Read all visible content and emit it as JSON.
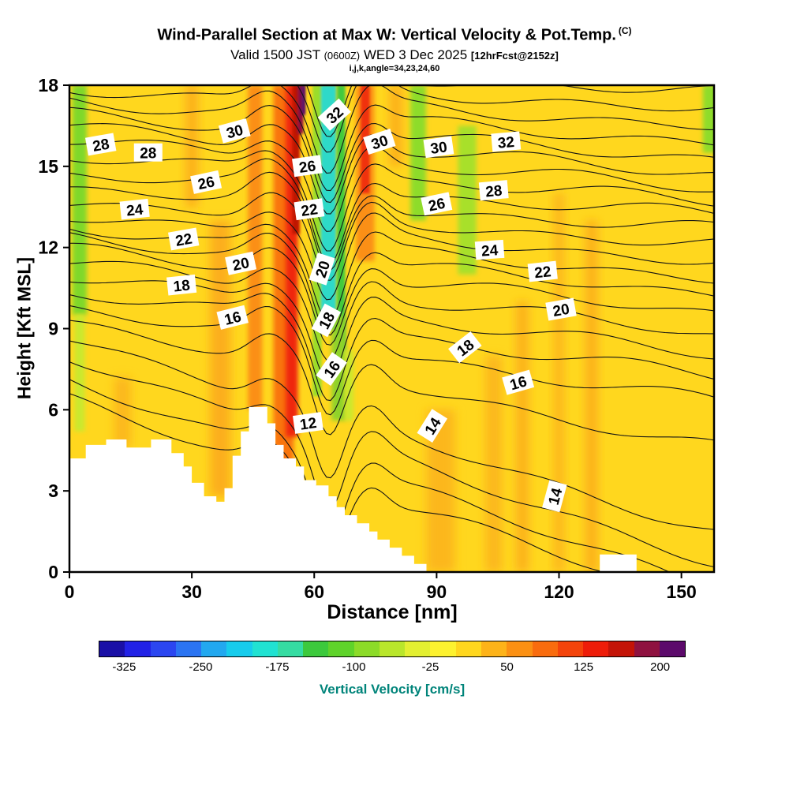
{
  "header": {
    "title_main": "Wind-Parallel Section at Max W: Vertical Velocity & Pot.Temp.",
    "title_unit": "(C)",
    "valid_prefix": "Valid 1500 JST",
    "valid_small": "(0600Z)",
    "valid_date": "WED 3 Dec 2025",
    "valid_fcst": "[12hrFcst@2152z]",
    "meta": "i,j,k,angle=34,23,24,60"
  },
  "colorbar": {
    "label": "Vertical Velocity [cm/s]",
    "min": -350,
    "max": 225,
    "tick_values": [
      -325,
      -250,
      -175,
      -100,
      -25,
      50,
      125,
      200
    ],
    "colors": [
      "#1a10a6",
      "#2222e6",
      "#2b46f0",
      "#2b74f2",
      "#22a8ef",
      "#17ccec",
      "#20e2d2",
      "#35dca2",
      "#3cc93c",
      "#5fd32a",
      "#8cdb28",
      "#b9e62b",
      "#e3ef31",
      "#fdf22f",
      "#ffd71e",
      "#fdb319",
      "#fb9013",
      "#f96c0e",
      "#f4440b",
      "#ee1d09",
      "#c41407",
      "#8f1240",
      "#5c0a6b"
    ]
  },
  "chart_data": {
    "type": "filled-contour-cross-section",
    "title": "Wind-Parallel Section at Max W: Vertical Velocity & Pot.Temp. (C)",
    "x": {
      "label": "Distance [nm]",
      "min": 0,
      "max": 158,
      "ticks": [
        0,
        30,
        60,
        90,
        120,
        150
      ]
    },
    "y": {
      "label": "Height [Kft MSL]",
      "min": 0,
      "max": 18,
      "ticks": [
        0,
        3,
        6,
        9,
        12,
        15,
        18
      ]
    },
    "theta_contours_c": {
      "interval": 1,
      "labeled_interval": 2,
      "levels": [
        {
          "v": 11,
          "h0": 6.3,
          "h1": -1.2
        },
        {
          "v": 12,
          "h0": 7.0,
          "h1": -0.5
        },
        {
          "v": 13,
          "h0": 7.9,
          "h1": 0.4
        },
        {
          "v": 14,
          "h0": 8.7,
          "h1": 1.5
        },
        {
          "v": 15,
          "h0": 9.3,
          "h1": 4.6
        },
        {
          "v": 16,
          "h0": 9.8,
          "h1": 6.3
        },
        {
          "v": 17,
          "h0": 10.35,
          "h1": 7.2
        },
        {
          "v": 18,
          "h0": 10.9,
          "h1": 8.0
        },
        {
          "v": 19,
          "h0": 11.4,
          "h1": 8.8
        },
        {
          "v": 20,
          "h0": 11.9,
          "h1": 9.6
        },
        {
          "v": 21,
          "h0": 12.3,
          "h1": 10.3
        },
        {
          "v": 22,
          "h0": 12.7,
          "h1": 10.9
        },
        {
          "v": 23,
          "h0": 13.2,
          "h1": 11.5
        },
        {
          "v": 24,
          "h0": 13.7,
          "h1": 12.1
        },
        {
          "v": 25,
          "h0": 14.2,
          "h1": 12.65
        },
        {
          "v": 26,
          "h0": 14.7,
          "h1": 13.2
        },
        {
          "v": 27,
          "h0": 15.3,
          "h1": 13.7
        },
        {
          "v": 28,
          "h0": 15.9,
          "h1": 14.2
        },
        {
          "v": 29,
          "h0": 16.4,
          "h1": 14.75
        },
        {
          "v": 30,
          "h0": 16.9,
          "h1": 15.3
        },
        {
          "v": 31,
          "h0": 17.4,
          "h1": 15.9
        },
        {
          "v": 32,
          "h0": 17.9,
          "h1": 16.5
        },
        {
          "v": 33,
          "h0": 18.4,
          "h1": 17.1
        },
        {
          "v": 34,
          "h0": 18.9,
          "h1": 17.7
        }
      ]
    },
    "wave": {
      "bump_center": 49,
      "bump_sigma": 6.5,
      "bump_amp": 0.8,
      "dip_center": 63.5,
      "dip_sigma": 5.0,
      "dip_amp": 2.6,
      "rebound_center": 74.5,
      "rebound_sigma": 5.0,
      "rebound_amp": 0.6,
      "ripple_amp": 0.18
    },
    "contour_labels": [
      {
        "v": 28,
        "d": 7.7,
        "h": 15.8,
        "r": -10
      },
      {
        "v": 28,
        "d": 19.3,
        "h": 15.5,
        "r": 0
      },
      {
        "v": 30,
        "d": 40.5,
        "h": 16.3,
        "r": -15
      },
      {
        "v": 26,
        "d": 33.5,
        "h": 14.4,
        "r": -12
      },
      {
        "v": 24,
        "d": 16.0,
        "h": 13.4,
        "r": -6
      },
      {
        "v": 22,
        "d": 28.0,
        "h": 12.3,
        "r": -10
      },
      {
        "v": 20,
        "d": 42.0,
        "h": 11.4,
        "r": -12
      },
      {
        "v": 18,
        "d": 27.5,
        "h": 10.6,
        "r": -6
      },
      {
        "v": 16,
        "d": 40.0,
        "h": 9.4,
        "r": -14
      },
      {
        "v": 26,
        "d": 58.3,
        "h": 15.0,
        "r": -8
      },
      {
        "v": 22,
        "d": 58.8,
        "h": 13.4,
        "r": -8
      },
      {
        "v": 20,
        "d": 62.0,
        "h": 11.2,
        "r": -72
      },
      {
        "v": 18,
        "d": 63.0,
        "h": 9.3,
        "r": -62
      },
      {
        "v": 16,
        "d": 64.3,
        "h": 7.5,
        "r": -55
      },
      {
        "v": 12,
        "d": 58.5,
        "h": 5.5,
        "r": -8
      },
      {
        "v": 32,
        "d": 65.0,
        "h": 16.9,
        "r": -42
      },
      {
        "v": 30,
        "d": 76.0,
        "h": 15.9,
        "r": -18
      },
      {
        "v": 30,
        "d": 90.5,
        "h": 15.7,
        "r": -8
      },
      {
        "v": 32,
        "d": 107.0,
        "h": 15.9,
        "r": -5
      },
      {
        "v": 28,
        "d": 104.0,
        "h": 14.1,
        "r": -5
      },
      {
        "v": 26,
        "d": 90.0,
        "h": 13.6,
        "r": -12
      },
      {
        "v": 24,
        "d": 103.0,
        "h": 11.9,
        "r": -4
      },
      {
        "v": 22,
        "d": 116.0,
        "h": 11.1,
        "r": -6
      },
      {
        "v": 20,
        "d": 120.5,
        "h": 9.7,
        "r": -10
      },
      {
        "v": 18,
        "d": 97.0,
        "h": 8.3,
        "r": -38
      },
      {
        "v": 16,
        "d": 110.0,
        "h": 7.0,
        "r": -16
      },
      {
        "v": 14,
        "d": 89.0,
        "h": 5.4,
        "r": -58
      },
      {
        "v": 14,
        "d": 119.0,
        "h": 2.8,
        "r": -75
      }
    ],
    "terrain_kft": [
      [
        0,
        4.2
      ],
      [
        4,
        4.2
      ],
      [
        4,
        4.7
      ],
      [
        9,
        4.7
      ],
      [
        9,
        4.9
      ],
      [
        14,
        4.9
      ],
      [
        14,
        4.6
      ],
      [
        20,
        4.6
      ],
      [
        20,
        4.9
      ],
      [
        25,
        4.9
      ],
      [
        25,
        4.4
      ],
      [
        28,
        4.4
      ],
      [
        28,
        3.9
      ],
      [
        30,
        3.9
      ],
      [
        30,
        3.3
      ],
      [
        33,
        3.3
      ],
      [
        33,
        2.8
      ],
      [
        36,
        2.8
      ],
      [
        36,
        2.6
      ],
      [
        38,
        2.6
      ],
      [
        38,
        3.1
      ],
      [
        40,
        3.1
      ],
      [
        40,
        4.3
      ],
      [
        42,
        4.3
      ],
      [
        42,
        5.2
      ],
      [
        44,
        5.2
      ],
      [
        44,
        6.1
      ],
      [
        48.5,
        6.1
      ],
      [
        48.5,
        5.5
      ],
      [
        50.5,
        5.5
      ],
      [
        50.5,
        4.7
      ],
      [
        52.5,
        4.7
      ],
      [
        52.5,
        4.2
      ],
      [
        55.5,
        4.2
      ],
      [
        55.5,
        3.9
      ],
      [
        57.5,
        3.9
      ],
      [
        57.5,
        3.4
      ],
      [
        60.5,
        3.4
      ],
      [
        60.5,
        3.2
      ],
      [
        63.5,
        3.2
      ],
      [
        63.5,
        2.8
      ],
      [
        65.5,
        2.8
      ],
      [
        65.5,
        2.4
      ],
      [
        67.5,
        2.4
      ],
      [
        67.5,
        2.1
      ],
      [
        70.5,
        2.1
      ],
      [
        70.5,
        1.8
      ],
      [
        73.5,
        1.8
      ],
      [
        73.5,
        1.5
      ],
      [
        75.5,
        1.5
      ],
      [
        75.5,
        1.2
      ],
      [
        78.5,
        1.2
      ],
      [
        78.5,
        0.9
      ],
      [
        81.5,
        0.9
      ],
      [
        81.5,
        0.6
      ],
      [
        84.5,
        0.6
      ],
      [
        84.5,
        0.3
      ],
      [
        87.5,
        0.3
      ],
      [
        87.5,
        0
      ],
      [
        130,
        0
      ],
      [
        130,
        0.65
      ],
      [
        139,
        0.65
      ],
      [
        139,
        0
      ],
      [
        158,
        0
      ]
    ],
    "velocity_fill": {
      "base_color": "#ffd71e",
      "bands": [
        {
          "d": 2.5,
          "w": 3.5,
          "t": 18,
          "b": 9.5,
          "c": "#7fd82c",
          "blur": 3
        },
        {
          "d": 2.5,
          "w": 2.5,
          "t": 9.5,
          "b": 5.2,
          "c": "#c9e92f",
          "blur": 3
        },
        {
          "d": 13,
          "w": 4,
          "t": 7.2,
          "b": 4.6,
          "c": "#fcb71b",
          "blur": 6
        },
        {
          "d": 30,
          "w": 3,
          "t": 18,
          "b": 13.5,
          "c": "#fcae1a",
          "blur": 6
        },
        {
          "d": 37,
          "w": 5,
          "t": 13,
          "b": 2.8,
          "c": "#fcae1a",
          "blur": 6
        },
        {
          "d": 45.5,
          "w": 3.5,
          "t": 18,
          "b": 6,
          "c": "#fb8f13",
          "blur": 3
        },
        {
          "d": 52.5,
          "w": 5,
          "t": 18,
          "b": 4,
          "c": "#f9750f",
          "blur": 3
        },
        {
          "d": 54.5,
          "w": 3,
          "t": 18,
          "b": 5,
          "c": "#ef250a",
          "blur": 3
        },
        {
          "d": 55.5,
          "w": 1.8,
          "t": 18,
          "b": 12.5,
          "c": "#c01306",
          "blur": 1.5
        },
        {
          "d": 56.6,
          "w": 1.5,
          "t": 18,
          "b": 16.2,
          "c": "#8f1140",
          "blur": 1.5
        },
        {
          "d": 57.4,
          "w": 1.2,
          "t": 18,
          "b": 16.9,
          "c": "#5c0a6b",
          "blur": 1.5
        },
        {
          "d": 59,
          "w": 1.8,
          "t": 18,
          "b": 6,
          "c": "#ffd71e",
          "blur": 1.5
        },
        {
          "d": 60.7,
          "w": 2.2,
          "t": 18,
          "b": 6.5,
          "c": "#9bdd2a",
          "blur": 1.5
        },
        {
          "d": 63.5,
          "w": 3.8,
          "t": 18,
          "b": 9,
          "c": "#2fd9c8",
          "blur": 1.5
        },
        {
          "d": 66.6,
          "w": 2.0,
          "t": 18,
          "b": 8.2,
          "c": "#42ca3e",
          "blur": 1.5
        },
        {
          "d": 66,
          "w": 3.5,
          "t": 9.5,
          "b": 5.6,
          "c": "#8fd32a",
          "blur": 3
        },
        {
          "d": 68.6,
          "w": 2,
          "t": 8.2,
          "b": 5.6,
          "c": "#c9e92f",
          "blur": 3
        },
        {
          "d": 72.5,
          "w": 4.5,
          "t": 18,
          "b": 11.5,
          "c": "#fb8f13",
          "blur": 3
        },
        {
          "d": 72.5,
          "w": 2.2,
          "t": 18,
          "b": 14,
          "c": "#f0330b",
          "blur": 1.5
        },
        {
          "d": 80,
          "w": 3,
          "t": 18,
          "b": 15,
          "c": "#fcae1a",
          "blur": 6
        },
        {
          "d": 85.5,
          "w": 3.8,
          "t": 18,
          "b": 13,
          "c": "#8edc2c",
          "blur": 3
        },
        {
          "d": 97.5,
          "w": 4.5,
          "t": 16.5,
          "b": 11,
          "c": "#a8e02c",
          "blur": 3
        },
        {
          "d": 91,
          "w": 7,
          "t": 6,
          "b": 0,
          "c": "#fcb71b",
          "blur": 6
        },
        {
          "d": 104,
          "w": 4,
          "t": 8,
          "b": 0,
          "c": "#fcb71b",
          "blur": 6
        },
        {
          "d": 111,
          "w": 3,
          "t": 10,
          "b": 0,
          "c": "#fcb01a",
          "blur": 6
        },
        {
          "d": 120,
          "w": 2.5,
          "t": 14,
          "b": 0,
          "c": "#fcb51b",
          "blur": 6
        },
        {
          "d": 128,
          "w": 3,
          "t": 13,
          "b": 0,
          "c": "#fcb01a",
          "blur": 6
        },
        {
          "d": 157,
          "w": 3.5,
          "t": 18,
          "b": 15.5,
          "c": "#8edc2c",
          "blur": 3
        }
      ]
    }
  }
}
